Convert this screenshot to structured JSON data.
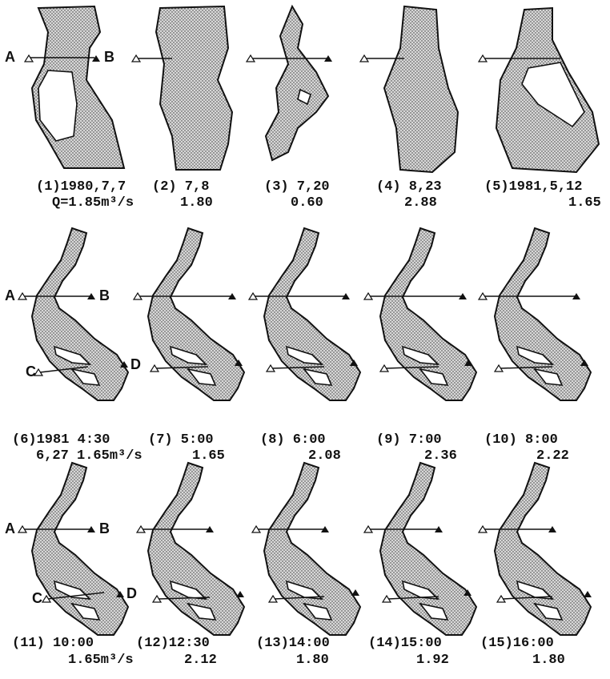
{
  "panels": [
    {
      "label": "(1)1980,7,7",
      "discharge": "Q=1.85m³/s",
      "markers": [
        "A",
        "B"
      ]
    },
    {
      "label": "(2) 7,8",
      "discharge": "1.80"
    },
    {
      "label": "(3) 7,20",
      "discharge": "0.60"
    },
    {
      "label": "(4) 8,23",
      "discharge": "2.88"
    },
    {
      "label": "(5)1981,5,12",
      "discharge": "1.65"
    },
    {
      "label": "(6)1981 4:30",
      "discharge": "6,27 1.65m³/s",
      "markers": [
        "A",
        "B",
        "C",
        "D"
      ]
    },
    {
      "label": "(7) 5:00",
      "discharge": "1.65"
    },
    {
      "label": "(8) 6:00",
      "discharge": "2.08"
    },
    {
      "label": "(9) 7:00",
      "discharge": "2.36"
    },
    {
      "label": "(10) 8:00",
      "discharge": "2.22"
    },
    {
      "label": "(11) 10:00",
      "discharge": "1.65m³/s",
      "markers": [
        "A",
        "B",
        "C",
        "D"
      ]
    },
    {
      "label": "(12)12:30",
      "discharge": "2.12"
    },
    {
      "label": "(13)14:00",
      "discharge": "1.80"
    },
    {
      "label": "(14)15:00",
      "discharge": "1.92"
    },
    {
      "label": "(15)16:00",
      "discharge": "1.80"
    }
  ]
}
